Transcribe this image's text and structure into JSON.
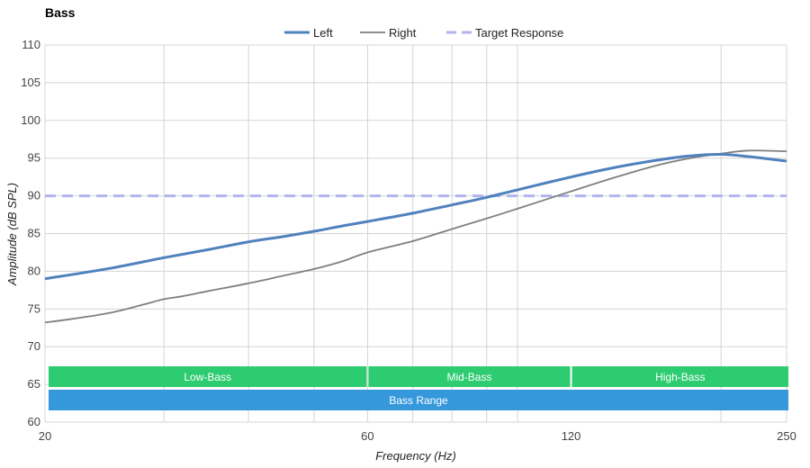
{
  "chart_data": {
    "type": "line",
    "title": "Bass",
    "xlabel": "Frequency (Hz)",
    "ylabel": "Amplitude (dB SPL)",
    "x_scale": "log",
    "xlim": [
      20,
      250
    ],
    "ylim": [
      60,
      110
    ],
    "x_ticks": [
      20,
      60,
      120,
      250
    ],
    "y_ticks": [
      60,
      65,
      70,
      75,
      80,
      85,
      90,
      95,
      100,
      105,
      110
    ],
    "grid": true,
    "legend_position": "top-center",
    "series": [
      {
        "name": "Left",
        "color": "#4f81bd",
        "style": "solid-thick",
        "points": [
          [
            20,
            79.0
          ],
          [
            25,
            80.4
          ],
          [
            30,
            81.8
          ],
          [
            35,
            82.9
          ],
          [
            40,
            83.9
          ],
          [
            45,
            84.6
          ],
          [
            50,
            85.3
          ],
          [
            55,
            86.0
          ],
          [
            60,
            86.6
          ],
          [
            70,
            87.7
          ],
          [
            80,
            88.8
          ],
          [
            90,
            89.8
          ],
          [
            100,
            90.8
          ],
          [
            120,
            92.5
          ],
          [
            140,
            93.8
          ],
          [
            160,
            94.7
          ],
          [
            180,
            95.3
          ],
          [
            200,
            95.5
          ],
          [
            220,
            95.2
          ],
          [
            250,
            94.6
          ]
        ]
      },
      {
        "name": "Right",
        "color": "#7f7f7f",
        "style": "solid-thin",
        "points": [
          [
            20,
            73.2
          ],
          [
            22,
            73.7
          ],
          [
            25,
            74.5
          ],
          [
            28,
            75.6
          ],
          [
            30,
            76.3
          ],
          [
            32,
            76.7
          ],
          [
            35,
            77.4
          ],
          [
            40,
            78.4
          ],
          [
            45,
            79.4
          ],
          [
            50,
            80.3
          ],
          [
            55,
            81.3
          ],
          [
            60,
            82.5
          ],
          [
            70,
            84.0
          ],
          [
            80,
            85.6
          ],
          [
            90,
            87.0
          ],
          [
            100,
            88.3
          ],
          [
            120,
            90.6
          ],
          [
            140,
            92.5
          ],
          [
            160,
            94.0
          ],
          [
            180,
            95.0
          ],
          [
            200,
            95.6
          ],
          [
            220,
            96.0
          ],
          [
            250,
            95.9
          ]
        ]
      },
      {
        "name": "Target Response",
        "color": "#b3b3f0",
        "style": "dashed",
        "points": [
          [
            20,
            90
          ],
          [
            250,
            90
          ]
        ]
      }
    ],
    "bands": [
      {
        "label": "Low-Bass",
        "from": 20,
        "to": 60,
        "color": "#2ecc71"
      },
      {
        "label": "Mid-Bass",
        "from": 60,
        "to": 120,
        "color": "#2ecc71"
      },
      {
        "label": "High-Bass",
        "from": 120,
        "to": 250,
        "color": "#2ecc71"
      },
      {
        "label": "Bass Range",
        "from": 20,
        "to": 250,
        "color": "#3498db"
      }
    ]
  }
}
